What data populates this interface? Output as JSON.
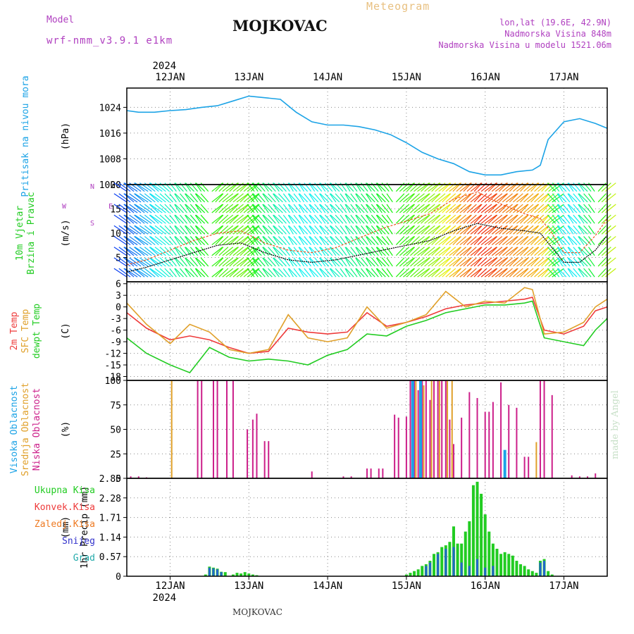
{
  "header": {
    "model_label": "Model",
    "model_name": "wrf-nmm_v3.9.1 e1km",
    "location": "MOJKOVAC",
    "chart_title": "Meteogram",
    "coords": "lon,lat (19.6E, 42.9N)",
    "altitude": "Nadmorska Visina 848m",
    "model_altitude": "Nadmorska Visina u modelu 1521.06m",
    "footer_location": "MOJKOVAC",
    "credit": "made by Angel"
  },
  "colors": {
    "pressure": "#1ca3e6",
    "t2m": "#ee3a3a",
    "tsfc": "#e0a02a",
    "dewpt": "#22cc22",
    "wind_speed": "#000000",
    "wind_gust": "#ee5522",
    "cloud_high": "#1ca3e6",
    "cloud_mid": "#e0a02a",
    "cloud_low": "#cc1f8a",
    "precip_total": "#22cc22",
    "precip_conv": "#2266cc",
    "grid": "#888888"
  },
  "chart_data": {
    "type": "line",
    "x_axis": {
      "year": "2024",
      "tick_labels": [
        "12JAN",
        "13JAN",
        "14JAN",
        "15JAN",
        "16JAN",
        "17JAN"
      ],
      "range_days": [
        -0.55,
        5.55
      ]
    },
    "panels": [
      {
        "id": "pressure",
        "ylabel_lines": [
          "Pritisak na nivou mora"
        ],
        "unit": "(hPa)",
        "ylim": [
          1000,
          1030
        ],
        "yticks": [
          1000,
          1008,
          1016,
          1024
        ],
        "series": [
          {
            "color_key": "pressure",
            "x": [
              -0.55,
              -0.4,
              -0.2,
              0,
              0.2,
              0.4,
              0.6,
              0.8,
              1.0,
              1.2,
              1.4,
              1.6,
              1.8,
              2.0,
              2.2,
              2.4,
              2.6,
              2.8,
              3.0,
              3.2,
              3.4,
              3.6,
              3.8,
              4.0,
              4.2,
              4.4,
              4.6,
              4.7,
              4.8,
              5.0,
              5.2,
              5.4,
              5.55
            ],
            "y": [
              1023,
              1022.5,
              1022.5,
              1023,
              1023.3,
              1024,
              1024.5,
              1026,
              1027.5,
              1027,
              1026.5,
              1022.5,
              1019.5,
              1018.5,
              1018.5,
              1018,
              1017,
              1015.5,
              1013,
              1010,
              1008,
              1006.5,
              1004,
              1003,
              1003,
              1004,
              1004.5,
              1006,
              1014,
              1019.5,
              1020.5,
              1019,
              1017.5
            ]
          }
        ]
      },
      {
        "id": "wind",
        "ylabel_lines": [
          "10m Vjetar",
          "Brzina i Pravac"
        ],
        "unit": "(m/s)",
        "ylim": [
          0,
          20
        ],
        "yticks": [
          5,
          10,
          15,
          20
        ],
        "compass": [
          "W",
          "S",
          "N",
          "E"
        ],
        "series": [
          {
            "color_key": "wind_speed",
            "x": [
              -0.55,
              -0.3,
              0,
              0.3,
              0.6,
              0.9,
              1.2,
              1.5,
              1.8,
              2.1,
              2.4,
              2.7,
              3.0,
              3.3,
              3.6,
              3.9,
              4.2,
              4.5,
              4.7,
              4.85,
              5.0,
              5.2,
              5.4,
              5.55
            ],
            "y": [
              2,
              3,
              4.5,
              6,
              7.5,
              8,
              6,
              4.5,
              4,
              4.5,
              5.5,
              6.5,
              7.5,
              8.5,
              10.5,
              12,
              11,
              10.5,
              10,
              7,
              4,
              4,
              6.5,
              9.5
            ]
          },
          {
            "color_key": "wind_gust",
            "x": [
              -0.55,
              -0.3,
              0,
              0.3,
              0.6,
              0.9,
              1.2,
              1.5,
              1.8,
              2.1,
              2.4,
              2.7,
              3.0,
              3.3,
              3.6,
              3.9,
              4.2,
              4.5,
              4.7,
              4.85,
              5.0,
              5.2,
              5.4,
              5.55
            ],
            "y": [
              3.5,
              4.5,
              6.5,
              8.5,
              10,
              10.5,
              8,
              6.5,
              6,
              7,
              9,
              11,
              12.5,
              14,
              17,
              18.5,
              16,
              14,
              13,
              10,
              6,
              6,
              9.5,
              13
            ]
          }
        ]
      },
      {
        "id": "temperature",
        "ylabel_lines": [
          "2m Temp",
          "SFC Temp",
          "dewpt Temp"
        ],
        "unit": "(C)",
        "ylim": [
          -19,
          6.5
        ],
        "yticks": [
          -18,
          -15,
          -12,
          -9,
          -6,
          -3,
          0,
          3,
          6
        ],
        "series": [
          {
            "color_key": "t2m",
            "x": [
              -0.55,
              -0.3,
              0,
              0.25,
              0.5,
              0.75,
              1.0,
              1.25,
              1.5,
              1.75,
              2.0,
              2.25,
              2.5,
              2.75,
              3.0,
              3.25,
              3.5,
              3.75,
              4.0,
              4.25,
              4.5,
              4.6,
              4.75,
              5.0,
              5.25,
              5.4,
              5.55
            ],
            "y": [
              -1.5,
              -5.5,
              -8.5,
              -7.5,
              -8.5,
              -10.5,
              -12,
              -11.5,
              -5.5,
              -6.5,
              -7,
              -6.5,
              -1.5,
              -5,
              -4,
              -2.5,
              -0.5,
              0.5,
              1,
              1.5,
              2,
              2.5,
              -6,
              -7,
              -5,
              -1,
              0
            ]
          },
          {
            "color_key": "tsfc",
            "x": [
              -0.55,
              -0.3,
              0,
              0.25,
              0.5,
              0.75,
              1.0,
              1.25,
              1.5,
              1.75,
              2.0,
              2.25,
              2.5,
              2.75,
              3.0,
              3.25,
              3.5,
              3.75,
              4.0,
              4.25,
              4.5,
              4.6,
              4.75,
              5.0,
              5.25,
              5.4,
              5.55
            ],
            "y": [
              1,
              -4.5,
              -9.5,
              -4.5,
              -6.5,
              -11,
              -12,
              -11,
              -2,
              -8,
              -9,
              -8,
              0,
              -5.5,
              -4,
              -2,
              4,
              0,
              1.5,
              1,
              5,
              4.5,
              -7,
              -6.5,
              -4,
              0,
              2
            ]
          },
          {
            "color_key": "dewpt",
            "x": [
              -0.55,
              -0.3,
              0,
              0.25,
              0.5,
              0.75,
              1.0,
              1.25,
              1.5,
              1.75,
              2.0,
              2.25,
              2.5,
              2.75,
              3.0,
              3.25,
              3.5,
              3.75,
              4.0,
              4.25,
              4.5,
              4.6,
              4.75,
              5.0,
              5.25,
              5.4,
              5.55
            ],
            "y": [
              -8,
              -12,
              -15,
              -17,
              -10.5,
              -13,
              -14,
              -13.5,
              -14,
              -15,
              -12.5,
              -11,
              -7,
              -7.5,
              -5,
              -3.5,
              -1.5,
              -0.5,
              0.5,
              0.5,
              1,
              1.5,
              -8,
              -9,
              -10,
              -6,
              -3
            ]
          }
        ]
      },
      {
        "id": "cloud",
        "ylabel_lines": [
          "Visoka Oblacnost",
          "Srednja Oblacnost",
          "Niska Oblacnost"
        ],
        "unit": "(%)",
        "ylim": [
          0,
          100
        ],
        "yticks": [
          0,
          25,
          50,
          75,
          100
        ],
        "series": [
          {
            "color_key": "cloud_low",
            "x": [
              -0.5,
              -0.4,
              -0.3,
              0.35,
              0.4,
              0.55,
              0.6,
              0.72,
              0.8,
              0.98,
              1.05,
              1.1,
              1.2,
              1.25,
              1.8,
              2.2,
              2.3,
              2.5,
              2.55,
              2.65,
              2.7,
              2.85,
              2.9,
              3.0,
              3.05,
              3.1,
              3.15,
              3.2,
              3.25,
              3.3,
              3.35,
              3.4,
              3.45,
              3.5,
              3.55,
              3.6,
              3.7,
              3.8,
              3.9,
              4.0,
              4.05,
              4.1,
              4.2,
              4.3,
              4.4,
              4.5,
              4.55,
              4.7,
              4.75,
              4.85,
              5.1,
              5.2,
              5.3,
              5.4
            ],
            "values": [
              2,
              2,
              1,
              100,
              100,
              100,
              100,
              100,
              100,
              50,
              60,
              66,
              38,
              38,
              7,
              2,
              2,
              10,
              10,
              10,
              10,
              65,
              62,
              63,
              100,
              100,
              90,
              100,
              100,
              80,
              100,
              100,
              100,
              100,
              60,
              35,
              62,
              88,
              82,
              68,
              68,
              78,
              98,
              75,
              72,
              22,
              22,
              100,
              100,
              85,
              3,
              2,
              2,
              5
            ]
          },
          {
            "color_key": "cloud_mid",
            "x": [
              0.02,
              3.12,
              3.22,
              3.32,
              3.42,
              3.52,
              3.58,
              4.65
            ],
            "values": [
              100,
              100,
              95,
              100,
              100,
              100,
              100,
              37
            ]
          },
          {
            "color_key": "cloud_high",
            "x": [
              3.08,
              3.18,
              4.25
            ],
            "values": [
              100,
              100,
              29
            ]
          }
        ]
      },
      {
        "id": "precip",
        "ylabel_lines": [
          "1hr Precip (mm)"
        ],
        "unit": "(mm)",
        "ylim": [
          0,
          2.85
        ],
        "yticks": [
          0,
          0.57,
          1.14,
          1.71,
          2.28,
          2.85
        ],
        "legend": [
          "Ukupna Kisa",
          "Konvek.Kisa",
          "Zaledj.Kisa",
          "Snijeg",
          "Grad"
        ],
        "legend_colors": [
          "#22cc22",
          "#ee3a3a",
          "#ee7a22",
          "#3333cc",
          "#22aaaa"
        ],
        "series": [
          {
            "color_key": "precip_total",
            "x": [
              0.45,
              0.5,
              0.55,
              0.6,
              0.65,
              0.7,
              0.8,
              0.85,
              0.9,
              0.95,
              1.0,
              1.05,
              1.1,
              3.0,
              3.05,
              3.1,
              3.15,
              3.2,
              3.25,
              3.3,
              3.35,
              3.4,
              3.45,
              3.5,
              3.55,
              3.6,
              3.65,
              3.7,
              3.75,
              3.8,
              3.85,
              3.9,
              3.95,
              4.0,
              4.05,
              4.1,
              4.15,
              4.2,
              4.25,
              4.3,
              4.35,
              4.4,
              4.45,
              4.5,
              4.55,
              4.6,
              4.65,
              4.7,
              4.75,
              4.8,
              4.85
            ],
            "values": [
              0.05,
              0.28,
              0.25,
              0.22,
              0.13,
              0.12,
              0.05,
              0.1,
              0.08,
              0.12,
              0.08,
              0.05,
              0.03,
              0.05,
              0.1,
              0.15,
              0.2,
              0.3,
              0.35,
              0.45,
              0.65,
              0.7,
              0.85,
              0.9,
              1.0,
              1.45,
              0.95,
              0.95,
              1.3,
              1.6,
              2.65,
              2.75,
              2.4,
              1.8,
              1.3,
              0.95,
              0.8,
              0.65,
              0.7,
              0.65,
              0.6,
              0.45,
              0.35,
              0.3,
              0.2,
              0.15,
              0.1,
              0.45,
              0.5,
              0.15,
              0.05
            ]
          },
          {
            "color_key": "precip_conv",
            "x": [
              0.5,
              0.55,
              0.6,
              0.65,
              3.25,
              3.3,
              3.4,
              3.5,
              3.6,
              3.7,
              3.8,
              3.9,
              4.0,
              4.1,
              4.7,
              4.75
            ],
            "values": [
              0.25,
              0.23,
              0.2,
              0.12,
              0.3,
              0.4,
              0.65,
              0.8,
              0.85,
              0.4,
              0.3,
              0.5,
              0.25,
              0.3,
              0.4,
              0.45
            ]
          }
        ]
      }
    ]
  }
}
